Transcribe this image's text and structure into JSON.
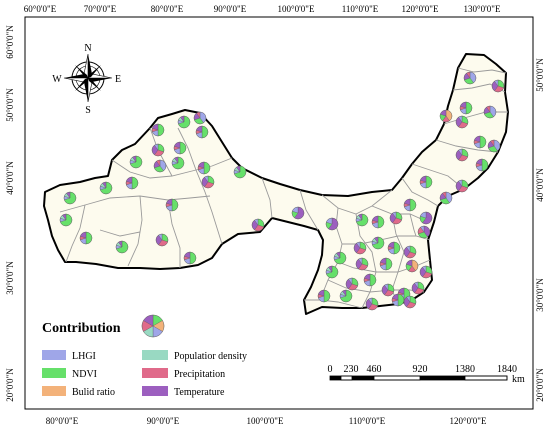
{
  "map": {
    "lon_labels_top": [
      "60°0'0\"E",
      "70°0'0\"E",
      "80°0'0\"E",
      "90°0'0\"E",
      "100°0'0\"E",
      "110°0'0\"E",
      "120°0'0\"E",
      "130°0'0\"E"
    ],
    "lon_labels_bottom": [
      "80°0'0\"E",
      "90°0'0\"E",
      "100°0'0\"E",
      "110°0'0\"E",
      "120°0'0\"E"
    ],
    "lat_labels_left": [
      "60°0'0\"N",
      "50°0'0\"N",
      "40°0'0\"N",
      "30°0'0\"N",
      "20°0'0\"N"
    ],
    "lat_labels_right": [
      "50°0'0\"N",
      "40°0'0\"N",
      "30°0'0\"N",
      "20°0'0\"N"
    ],
    "colors": {
      "land": "#fdfbee",
      "boundary": "#000000",
      "inner_boundary": "#9a9a9a",
      "background": "#ffffff"
    }
  },
  "compass": {
    "n": "N",
    "s": "S",
    "e": "E",
    "w": "W"
  },
  "legend": {
    "title": "Contribution",
    "items": [
      {
        "label": "LHGI",
        "color": "#9fa6e8"
      },
      {
        "label": "NDVI",
        "color": "#66e06a"
      },
      {
        "label": "Bulid ratio",
        "color": "#f3b27a"
      },
      {
        "label": "Populatior density",
        "color": "#99d9c2"
      },
      {
        "label": "Precipitation",
        "color": "#e06a8a"
      },
      {
        "label": "Temperature",
        "color": "#9c5fbf"
      }
    ]
  },
  "scalebar": {
    "ticks": [
      "0",
      "230",
      "460",
      "920",
      "1380",
      "1840"
    ],
    "unit": "km"
  }
}
